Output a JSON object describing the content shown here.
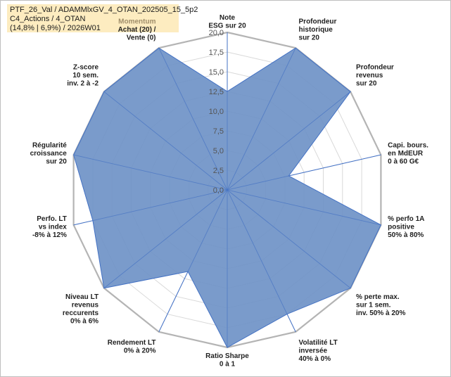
{
  "header": {
    "line1": "PTF_26_Val / ADAMMlxGV_4_OTAN_202505_15_5p2",
    "line2": "C4_Actions / 4_OTAN",
    "line3": "(14,8% | 6,9%) / 2026W01"
  },
  "colors": {
    "fill": "#6f92c7",
    "stroke": "#4472c4",
    "outer_ring": "#b4b4b4",
    "grid": "#d9d9d9",
    "spoke": "#4472c4"
  },
  "chart_data": {
    "type": "radar",
    "rmin": 0,
    "rmax": 20,
    "ticks": [
      "0,0",
      "2,5",
      "5,0",
      "7,5",
      "10,0",
      "12,5",
      "15,0",
      "17,5",
      "20,0"
    ],
    "tick_values": [
      0,
      2.5,
      5,
      7.5,
      10,
      12.5,
      15,
      17.5,
      20
    ],
    "axes": [
      {
        "lines": [
          "Note",
          "ESG sur 20"
        ],
        "value": 12.5
      },
      {
        "lines": [
          "Profondeur",
          "historique",
          "sur 20"
        ],
        "value": 20
      },
      {
        "lines": [
          "Profondeur",
          "revenus",
          "sur 20"
        ],
        "value": 20
      },
      {
        "lines": [
          "Capi. bours.",
          "en MdEUR",
          "0 à 60 G€"
        ],
        "value": 8
      },
      {
        "lines": [
          "% perfo 1A",
          "positive",
          "50% à 80%"
        ],
        "value": 20
      },
      {
        "lines": [
          "% perte max.",
          "sur 1 sem.",
          "inv. 50% à 20%"
        ],
        "value": 20
      },
      {
        "lines": [
          "Volatilité LT",
          "inversée",
          "40% à 0%"
        ],
        "value": 17.5
      },
      {
        "lines": [
          "Ratio Sharpe",
          "0 à 1"
        ],
        "value": 20
      },
      {
        "lines": [
          "Rendement LT",
          "0% à 20%"
        ],
        "value": 11.5
      },
      {
        "lines": [
          "Niveau LT",
          "revenus",
          "reccurents",
          "0% à 6%"
        ],
        "value": 20
      },
      {
        "lines": [
          "Perfo. LT",
          "vs index",
          "-8% à 12%"
        ],
        "value": 17.5
      },
      {
        "lines": [
          "Régularité",
          "croissance",
          "sur 20"
        ],
        "value": 20
      },
      {
        "lines": [
          "Z-score",
          "10 sem.",
          "inv. 2 à -2"
        ],
        "value": 20
      },
      {
        "lines": [
          "Momentum",
          "Achat (20) /",
          "Vente (0)"
        ],
        "value": 20,
        "first_line_grey": true
      }
    ]
  }
}
